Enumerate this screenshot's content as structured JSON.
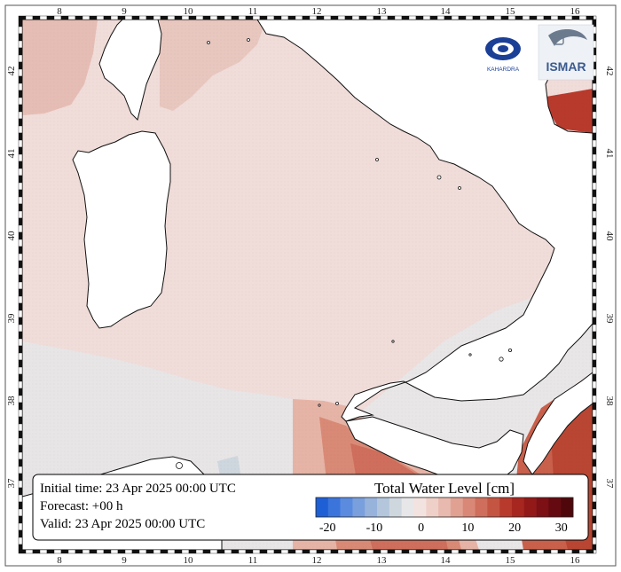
{
  "map": {
    "lon_labels": [
      "8",
      "9",
      "10",
      "11",
      "12",
      "13",
      "14",
      "15",
      "16"
    ],
    "lat_labels": [
      "37",
      "38",
      "39",
      "40",
      "41",
      "42"
    ]
  },
  "info": {
    "initial_time": "Initial time: 23 Apr 2025 00:00 UTC",
    "forecast": "Forecast: +00 h",
    "valid": "Valid: 23 Apr 2025 00:00 UTC"
  },
  "colorbar": {
    "title": "Total Water Level [cm]",
    "ticks": [
      "-20",
      "-10",
      "0",
      "10",
      "20",
      "30"
    ],
    "colors": [
      "#1f5fd6",
      "#3b75dc",
      "#5a8bdf",
      "#7a9fdd",
      "#97b3dc",
      "#b3c6dc",
      "#cfd7de",
      "#e7e7ea",
      "#f3e3e0",
      "#efd0c9",
      "#e8b9ae",
      "#e1a192",
      "#d98877",
      "#cf6e5c",
      "#c55543",
      "#b83a2d",
      "#a7261f",
      "#921918",
      "#7c1014",
      "#650a10",
      "#4f070c"
    ]
  },
  "logos": {
    "left_text": "KAHARDRA",
    "right_text": "ISMAR"
  }
}
